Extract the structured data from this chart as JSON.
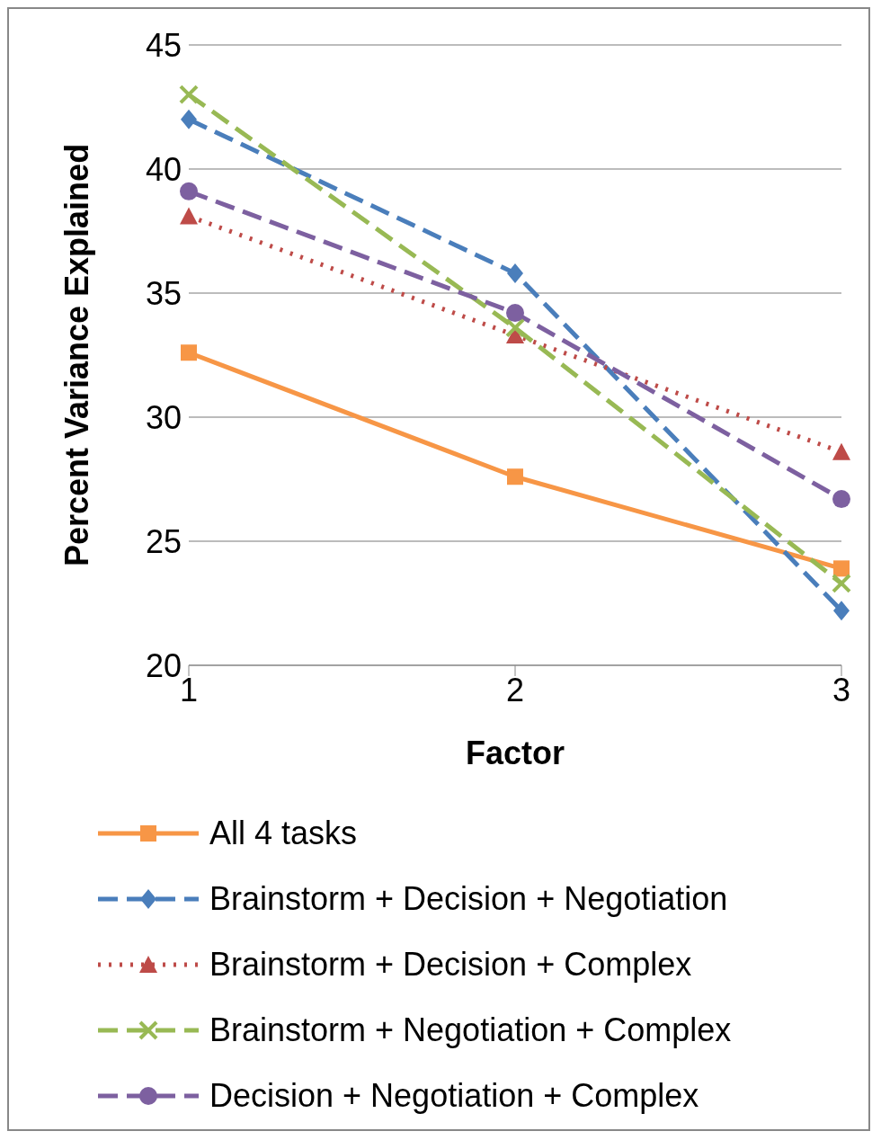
{
  "chart_data": {
    "type": "line",
    "xlabel": "Factor",
    "ylabel": "Percent Variance Explained",
    "categories": [
      "1",
      "2",
      "3"
    ],
    "ylim": [
      20,
      45
    ],
    "yticks": [
      20,
      25,
      30,
      35,
      40,
      45
    ],
    "grid": "y",
    "legend": "bottom",
    "series": [
      {
        "name": "All 4 tasks",
        "color": "#f79646",
        "values": [
          32.6,
          27.6,
          23.9
        ],
        "marker": "square",
        "line_style": "solid"
      },
      {
        "name": "Brainstorm + Decision + Negotiation",
        "color": "#4a7ebb",
        "values": [
          42.0,
          35.8,
          22.2
        ],
        "marker": "diamond",
        "line_style": "dashed"
      },
      {
        "name": "Brainstorm + Decision + Complex",
        "color": "#be4b48",
        "values": [
          38.1,
          33.3,
          28.6
        ],
        "marker": "triangle",
        "line_style": "dotted"
      },
      {
        "name": "Brainstorm + Negotiation + Complex",
        "color": "#98b954",
        "values": [
          43.0,
          33.6,
          23.3
        ],
        "marker": "cross",
        "line_style": "dashed"
      },
      {
        "name": "Decision + Negotiation + Complex",
        "color": "#7d60a0",
        "values": [
          39.1,
          34.2,
          26.7
        ],
        "marker": "circle",
        "line_style": "dashed"
      }
    ]
  }
}
